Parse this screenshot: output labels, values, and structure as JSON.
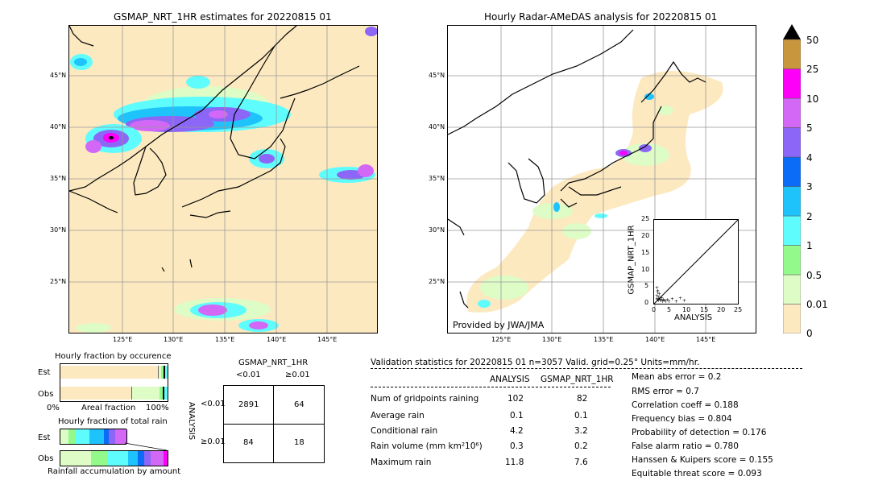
{
  "left_map": {
    "title": "GSMAP_NRT_1HR estimates for 20220815 01",
    "lat_labels": [
      "45°N",
      "40°N",
      "35°N",
      "30°N",
      "25°N"
    ],
    "lon_labels": [
      "125°E",
      "130°E",
      "135°E",
      "140°E",
      "145°E"
    ]
  },
  "right_map": {
    "title": "Hourly Radar-AMeDAS analysis for 20220815 01",
    "lat_labels": [
      "45°N",
      "40°N",
      "35°N",
      "30°N",
      "25°N"
    ],
    "lon_labels": [
      "125°E",
      "130°E",
      "135°E",
      "140°E",
      "145°E"
    ],
    "credit": "Provided by JWA/JMA"
  },
  "colorbar": {
    "levels": [
      "0",
      "0.01",
      "0.5",
      "1",
      "2",
      "3",
      "4",
      "5",
      "10",
      "25",
      "50"
    ],
    "colors": [
      "#fde9c0",
      "#ddfcc6",
      "#93f98b",
      "#5ffcfd",
      "#1fc3fb",
      "#0a6cf7",
      "#8c66f6",
      "#d368f6",
      "#fc00f8",
      "#c8963c",
      "#000000"
    ]
  },
  "scatter": {
    "ylabel": "GSMAP_NRT_1HR",
    "xlabel": "ANALYSIS",
    "ticks": [
      "0",
      "5",
      "10",
      "15",
      "20",
      "25"
    ]
  },
  "occurrence": {
    "title": "Hourly fraction by occurence",
    "row_est": "Est",
    "row_obs": "Obs",
    "axis_left": "0%",
    "axis_mid": "Areal fraction",
    "axis_right": "100%"
  },
  "total_rain": {
    "title": "Hourly fraction of total rain",
    "row_est": "Est",
    "row_obs": "Obs",
    "axis_label": "Rainfall accumulation by amount"
  },
  "contingency": {
    "title": "GSMAP_NRT_1HR",
    "col_lt": "<0.01",
    "col_ge": "≥0.01",
    "row_axis": "ANALYSIS",
    "row_lt": "<0.01",
    "row_ge": "≥0.01",
    "cells": [
      "2891",
      "64",
      "84",
      "18"
    ]
  },
  "validation": {
    "header": "Validation statistics for 20220815 01  n=3057 Valid. grid=0.25° Units=mm/hr.",
    "col_analysis": "ANALYSIS",
    "col_gsmap": "GSMAP_NRT_1HR",
    "rows": [
      {
        "label": "Num of gridpoints raining",
        "a": "102",
        "g": "82"
      },
      {
        "label": "Average rain",
        "a": "0.1",
        "g": "0.1"
      },
      {
        "label": "Conditional rain",
        "a": "4.2",
        "g": "3.2"
      },
      {
        "label": "Rain volume (mm km²10⁶)",
        "a": "0.3",
        "g": "0.2"
      },
      {
        "label": "Maximum rain",
        "a": "11.8",
        "g": "7.6"
      }
    ],
    "scores": [
      "Mean abs error =    0.2",
      "RMS error =    0.7",
      "Correlation coeff =  0.188",
      "Frequency bias =  0.804",
      "Probability of detection =  0.176",
      "False alarm ratio =  0.780",
      "Hanssen & Kuipers score =  0.155",
      "Equitable threat score =  0.093"
    ]
  }
}
